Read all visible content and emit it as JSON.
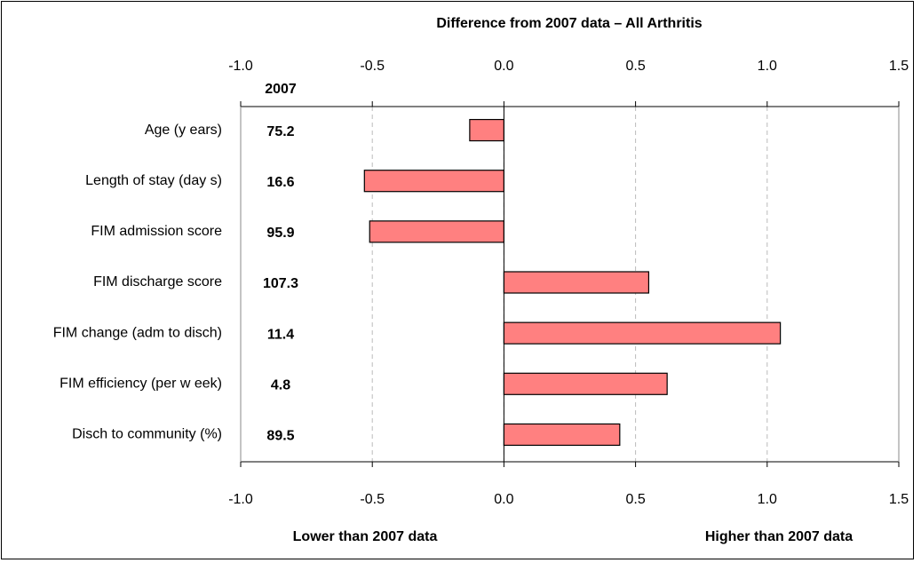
{
  "chart_data": {
    "type": "hbar",
    "title": "Difference from 2007 data – All Arthritis",
    "categories": [
      "Age (y ears)",
      "Length of stay  (day s)",
      "FIM admission score",
      "FIM discharge score",
      "FIM change (adm to disch)",
      "FIM efficiency  (per w eek)",
      "Disch to community  (%)"
    ],
    "values": [
      -0.13,
      -0.53,
      -0.51,
      0.55,
      1.05,
      0.62,
      0.44
    ],
    "color": "#ff8080",
    "reference_header": "2007",
    "reference_values": [
      75.2,
      16.6,
      95.9,
      107.3,
      11.4,
      4.8,
      89.5
    ],
    "xlim": [
      -1.0,
      1.5
    ],
    "xticks": [
      {
        "value": -1,
        "label": "-1.0"
      },
      -0.5,
      {
        "value": 0,
        "label": "0.0"
      },
      0.5,
      {
        "value": 1,
        "label": "1.0"
      },
      1.5
    ],
    "grid": true,
    "annotations": [
      "Lower than 2007 data",
      "Higher than 2007 data"
    ]
  }
}
